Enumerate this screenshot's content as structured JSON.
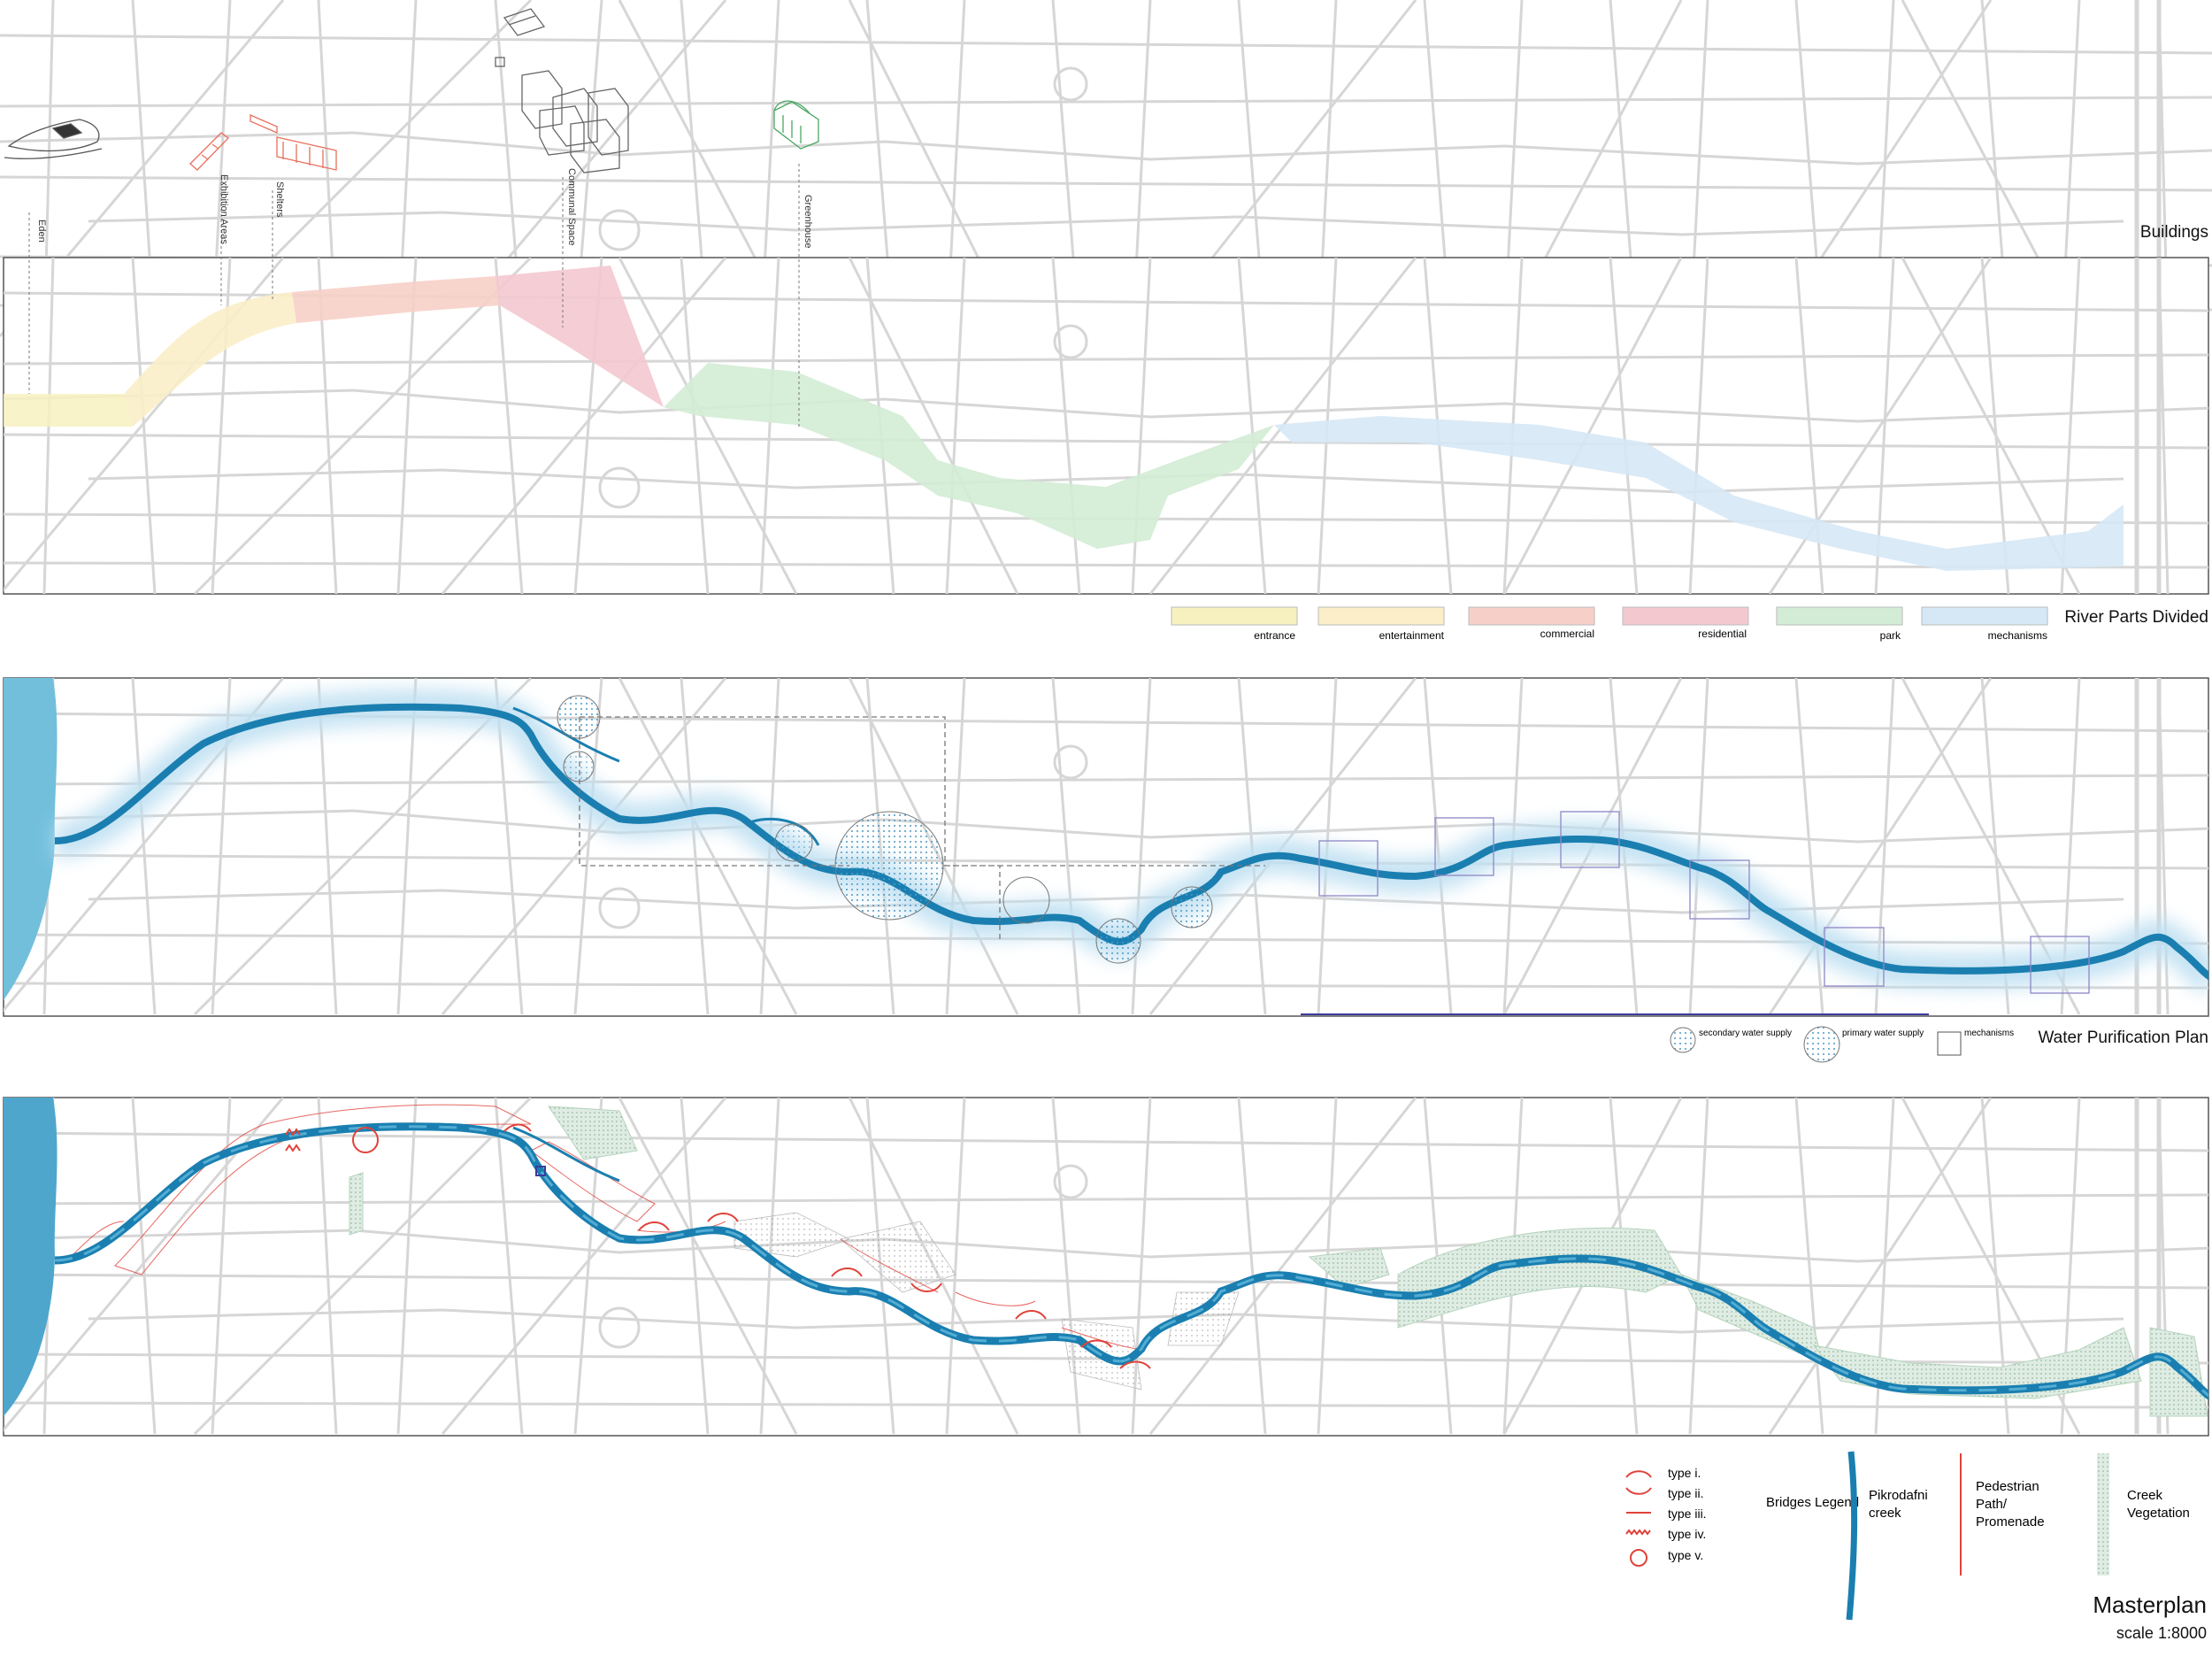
{
  "buildings": {
    "title": "Buildings",
    "labels": [
      "Eden",
      "Exhibition Areas",
      "Shelters",
      "Communal Space",
      "Greenhouse"
    ]
  },
  "river_parts": {
    "title": "River Parts Divided",
    "legend": [
      {
        "label": "entrance",
        "color": "#f7f1bf"
      },
      {
        "label": "entertainment",
        "color": "#fbeec8"
      },
      {
        "label": "commercial",
        "color": "#f6d0c8"
      },
      {
        "label": "residential",
        "color": "#f4c8cf"
      },
      {
        "label": "park",
        "color": "#d3ecd5"
      },
      {
        "label": "mechanisms",
        "color": "#d6e8f6"
      }
    ]
  },
  "water_plan": {
    "title": "Water Purification Plan",
    "legend": [
      {
        "label": "secondary water supply"
      },
      {
        "label": "primary water supply"
      },
      {
        "label": "mechanisms"
      }
    ]
  },
  "masterplan": {
    "bridges_title": "Bridges Legend",
    "bridge_types": [
      "type i.",
      "type ii.",
      "type iii.",
      "type iv.",
      "type v."
    ],
    "creek_label_1": "Pikrodafni",
    "creek_label_2": "creek",
    "path_label_1": "Pedestrian",
    "path_label_2": "Path/",
    "path_label_3": "Promenade",
    "veg_label_1": "Creek",
    "veg_label_2": "Vegetation",
    "title": "Masterplan",
    "scale": "scale 1:8000"
  },
  "colors": {
    "river": "#1a7fb0",
    "river_glow": "#bfe0f2",
    "sea": "#72bfdc",
    "street": "#d4d4d4",
    "path": "#e0423a",
    "veg": "#9cc7a6",
    "mech": "#8e87c7"
  }
}
